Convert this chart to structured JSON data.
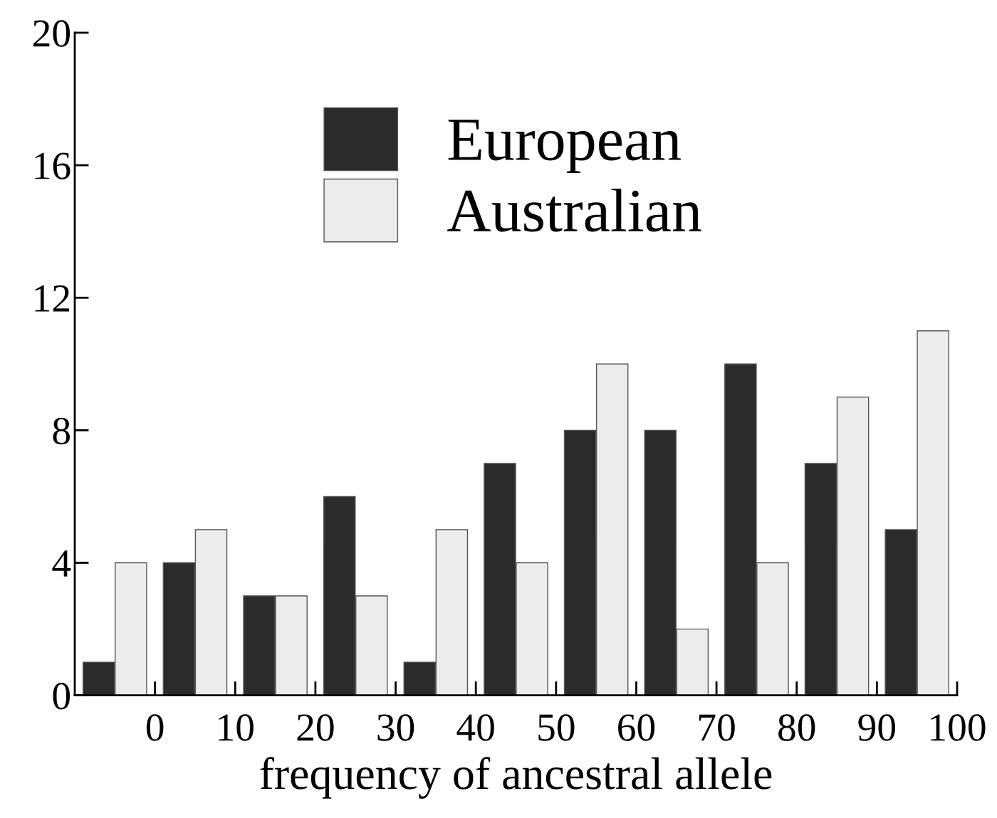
{
  "chart_data": {
    "type": "bar",
    "xlabel": "frequency of ancestral allele",
    "x": [
      -5,
      5,
      15,
      25,
      35,
      45,
      55,
      65,
      75,
      85,
      95
    ],
    "series": [
      {
        "name": "European",
        "color": "#2b2b2b",
        "values": [
          1,
          4,
          3,
          6,
          1,
          7,
          8,
          8,
          10,
          7,
          5
        ]
      },
      {
        "name": "Australian",
        "color": "#ececec",
        "values": [
          4,
          5,
          3,
          3,
          5,
          4,
          10,
          2,
          4,
          9,
          11
        ]
      }
    ],
    "xlim": [
      -10,
      100
    ],
    "xticks": [
      0,
      10,
      20,
      30,
      40,
      50,
      60,
      70,
      80,
      90,
      100
    ],
    "ylim": [
      0,
      20
    ],
    "yticks": [
      0,
      4,
      8,
      12,
      16,
      20
    ],
    "grid": false,
    "legend": "top left"
  }
}
